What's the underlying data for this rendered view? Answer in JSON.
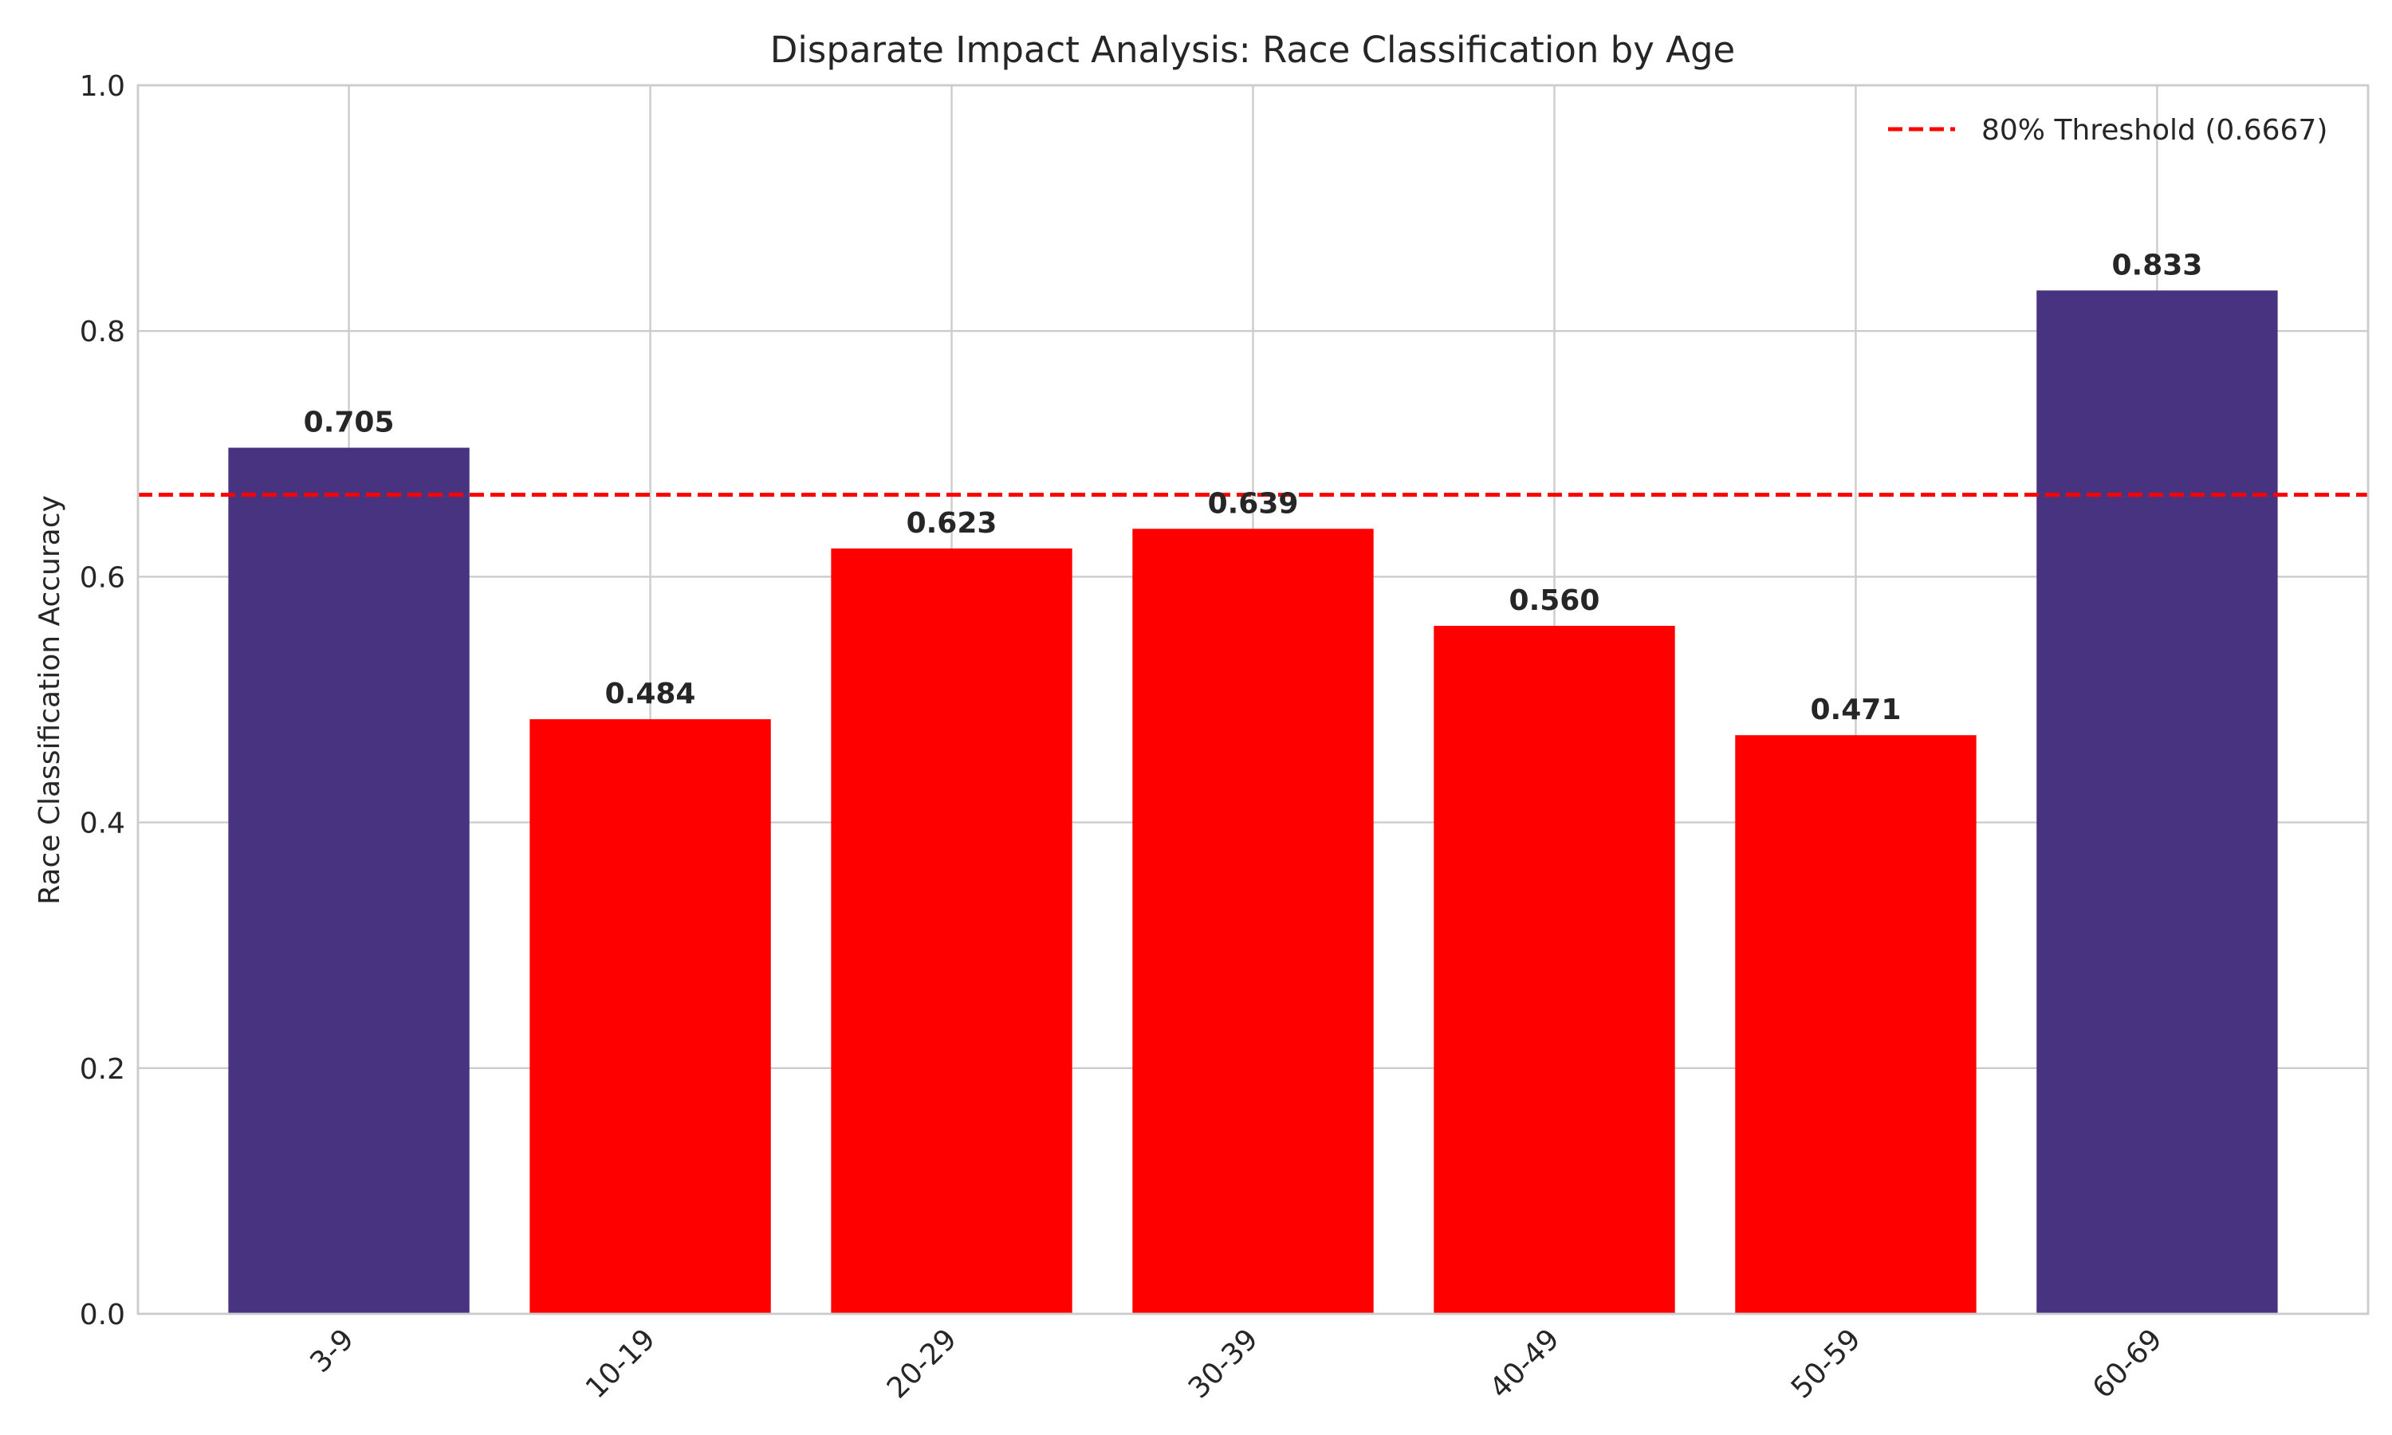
{
  "chart_data": {
    "type": "bar",
    "title": "Disparate Impact Analysis: Race Classification by Age",
    "xlabel": "",
    "ylabel": "Race Classification Accuracy",
    "categories": [
      "3-9",
      "10-19",
      "20-29",
      "30-39",
      "40-49",
      "50-59",
      "60-69"
    ],
    "values": [
      0.705,
      0.484,
      0.623,
      0.639,
      0.56,
      0.471,
      0.833
    ],
    "value_labels": [
      "0.705",
      "0.484",
      "0.623",
      "0.639",
      "0.560",
      "0.471",
      "0.833"
    ],
    "bar_colors": [
      "#483380",
      "#ff0000",
      "#ff0000",
      "#ff0000",
      "#ff0000",
      "#ff0000",
      "#483380"
    ],
    "ylim": [
      0,
      1.0
    ],
    "yticks": [
      "0.0",
      "0.2",
      "0.4",
      "0.6",
      "0.8",
      "1.0"
    ],
    "ytick_values": [
      0.0,
      0.2,
      0.4,
      0.6,
      0.8,
      1.0
    ],
    "grid": true,
    "threshold": {
      "value": 0.6667,
      "label": "80% Threshold (0.6667)",
      "color": "#ff0000",
      "style": "dashed"
    },
    "legend": {
      "placement": "top-right",
      "entries": [
        "80% Threshold (0.6667)"
      ]
    }
  }
}
